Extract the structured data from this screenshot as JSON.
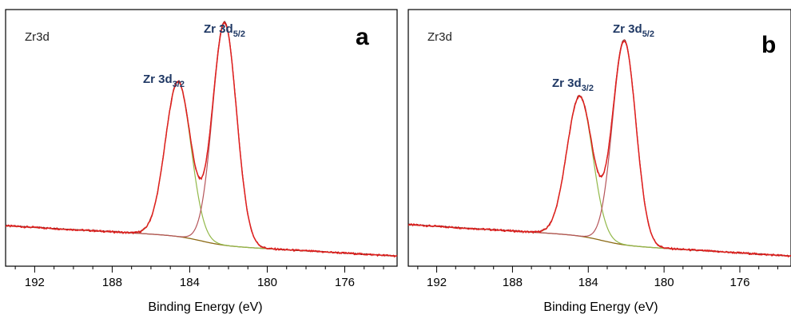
{
  "chart_data": [
    {
      "type": "line",
      "panel_label": "a",
      "spectrum_label": "Zr3d",
      "xlabel": "Binding Energy (eV)",
      "ylabel": "",
      "x_reversed": true,
      "xlim": [
        193.5,
        173.3
      ],
      "ylim": [
        0,
        1
      ],
      "grid": false,
      "x_ticks": [
        192,
        188,
        184,
        180,
        176
      ],
      "annotations": [
        {
          "base": "Zr 3d",
          "sub": "3/2",
          "x": 184.6
        },
        {
          "base": "Zr 3d",
          "sub": "5/2",
          "x": 182.2
        }
      ],
      "model": {
        "bg_start": 0.115,
        "bg_end": 0.02,
        "bg_x0": 193.5,
        "bg_x1": 173.3,
        "shirley_step": 0.035,
        "peaks": [
          {
            "name": "3d3/2",
            "center": 184.6,
            "height": 0.665,
            "fwhm": 1.55,
            "color": "#92b849"
          },
          {
            "name": "3d5/2",
            "center": 182.2,
            "height": 0.955,
            "fwhm": 1.45,
            "color": "#b5555a"
          }
        ]
      },
      "colors": {
        "envelope": "#e0201f",
        "raw": "#8b1a1a",
        "background": "#8b6914"
      }
    },
    {
      "type": "line",
      "panel_label": "b",
      "spectrum_label": "Zr3d",
      "xlabel": "Binding Energy (eV)",
      "ylabel": "",
      "x_reversed": true,
      "xlim": [
        193.5,
        173.3
      ],
      "ylim": [
        0,
        1
      ],
      "grid": false,
      "x_ticks": [
        192,
        188,
        184,
        180,
        176
      ],
      "annotations": [
        {
          "base": "Zr 3d",
          "sub": "3/2",
          "x": 184.5
        },
        {
          "base": "Zr 3d",
          "sub": "5/2",
          "x": 182.1
        }
      ],
      "model": {
        "bg_start": 0.12,
        "bg_end": 0.02,
        "bg_x0": 193.5,
        "bg_x1": 173.3,
        "shirley_step": 0.035,
        "peaks": [
          {
            "name": "3d3/2",
            "center": 184.45,
            "height": 0.6,
            "fwhm": 1.6,
            "color": "#92b849"
          },
          {
            "name": "3d5/2",
            "center": 182.1,
            "height": 0.875,
            "fwhm": 1.45,
            "color": "#b5555a"
          }
        ]
      },
      "colors": {
        "envelope": "#e0201f",
        "raw": "#8b1a1a",
        "background": "#8b6914"
      }
    }
  ]
}
